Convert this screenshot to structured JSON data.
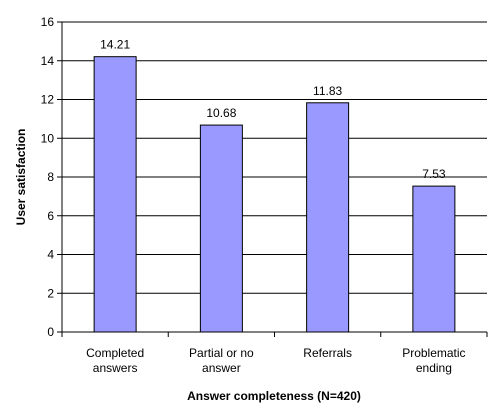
{
  "chart_data": {
    "type": "bar",
    "categories": [
      [
        "Completed",
        "answers"
      ],
      [
        "Partial or no",
        "answer"
      ],
      [
        "Referrals"
      ],
      [
        "Problematic",
        "ending"
      ]
    ],
    "values": [
      14.21,
      10.68,
      11.83,
      7.53
    ],
    "data_labels": [
      "14.21",
      "10.68",
      "11.83",
      "7.53"
    ],
    "title": "",
    "xlabel": "Answer completeness (N=420)",
    "ylabel": "User satisfaction",
    "ylim": [
      0,
      16
    ],
    "yticks": [
      0,
      2,
      4,
      6,
      8,
      10,
      12,
      14,
      16
    ],
    "grid": true,
    "legend": "none",
    "colors": {
      "bar_fill": "#9999FF",
      "bar_stroke": "#000000",
      "grid": "#000000",
      "background": "#FFFFFF"
    }
  }
}
